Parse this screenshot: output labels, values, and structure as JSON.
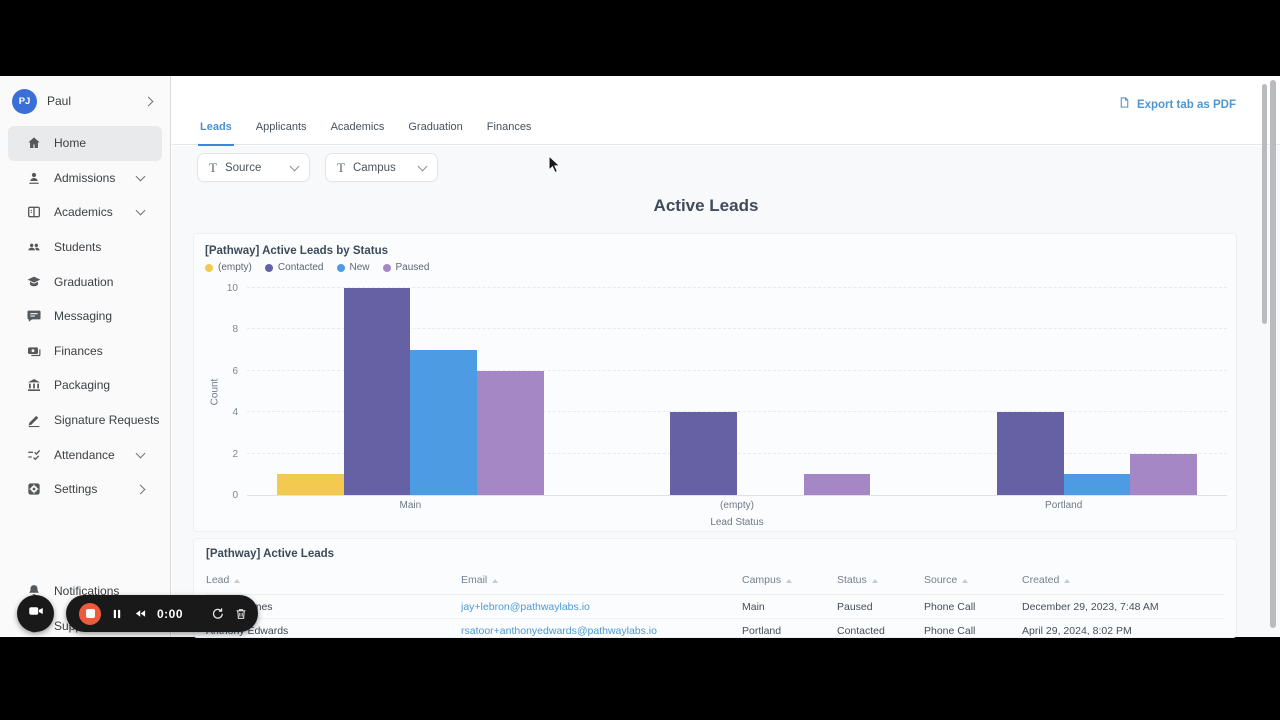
{
  "sidebar": {
    "user": {
      "initials": "PJ",
      "name": "Paul",
      "chevron": "right"
    },
    "items": [
      {
        "label": "Home",
        "icon": "home-icon",
        "active": true,
        "chevron": null
      },
      {
        "label": "Admissions",
        "icon": "person-icon",
        "active": false,
        "chevron": "down"
      },
      {
        "label": "Academics",
        "icon": "book-icon",
        "active": false,
        "chevron": "down"
      },
      {
        "label": "Students",
        "icon": "people-icon",
        "active": false,
        "chevron": null
      },
      {
        "label": "Graduation",
        "icon": "grad-cap-icon",
        "active": false,
        "chevron": null
      },
      {
        "label": "Messaging",
        "icon": "chat-icon",
        "active": false,
        "chevron": null
      },
      {
        "label": "Finances",
        "icon": "banknote-icon",
        "active": false,
        "chevron": null
      },
      {
        "label": "Packaging",
        "icon": "bank-icon",
        "active": false,
        "chevron": null
      },
      {
        "label": "Signature Requests",
        "icon": "pencil-icon",
        "active": false,
        "chevron": null
      },
      {
        "label": "Attendance",
        "icon": "checklist-icon",
        "active": false,
        "chevron": "down"
      },
      {
        "label": "Settings",
        "icon": "gear-icon",
        "active": false,
        "chevron": "right"
      }
    ],
    "footer_items": [
      {
        "label": "Notifications",
        "icon": "bell-icon"
      },
      {
        "label": "Support",
        "icon": "help-icon"
      }
    ]
  },
  "header": {
    "export_label": "Export tab as PDF",
    "export_icon": "file-icon",
    "accent_color": "#4f97ce"
  },
  "tabs": [
    {
      "label": "Leads",
      "active": true
    },
    {
      "label": "Applicants",
      "active": false
    },
    {
      "label": "Academics",
      "active": false
    },
    {
      "label": "Graduation",
      "active": false
    },
    {
      "label": "Finances",
      "active": false
    }
  ],
  "filters": [
    {
      "label": "Source",
      "icon": "text-filter-icon"
    },
    {
      "label": "Campus",
      "icon": "text-filter-icon"
    }
  ],
  "page": {
    "title": "Active Leads"
  },
  "chart_data": {
    "type": "bar",
    "title": "[Pathway] Active Leads by Status",
    "xlabel": "Lead Status",
    "ylabel": "Count",
    "ylim": [
      0,
      10
    ],
    "yticks": [
      0,
      2,
      4,
      6,
      8,
      10
    ],
    "grid": "dashed-horizontal",
    "legend_position": "top-left",
    "categories": [
      "Main",
      "(empty)",
      "Portland"
    ],
    "series": [
      {
        "name": "(empty)",
        "color": "#f4c94f",
        "values": [
          1,
          0,
          0
        ]
      },
      {
        "name": "Contacted",
        "color": "#6661a5",
        "values": [
          10,
          4,
          4
        ]
      },
      {
        "name": "New",
        "color": "#4d9be2",
        "values": [
          7,
          0,
          1
        ]
      },
      {
        "name": "Paused",
        "color": "#a687c6",
        "values": [
          6,
          1,
          2
        ]
      }
    ]
  },
  "table": {
    "title": "[Pathway] Active Leads",
    "columns": [
      "Lead",
      "Email",
      "Campus",
      "Status",
      "Source",
      "Created"
    ],
    "rows": [
      {
        "lead": "Lebron James",
        "email": "jay+lebron@pathwaylabs.io",
        "campus": "Main",
        "status": "Paused",
        "source": "Phone Call",
        "created": "December 29, 2023, 7:48 AM"
      },
      {
        "lead": "Anthony Edwards",
        "email": "rsatoor+anthonyedwards@pathwaylabs.io",
        "campus": "Portland",
        "status": "Contacted",
        "source": "Phone Call",
        "created": "April 29, 2024, 8:02 PM"
      }
    ]
  },
  "recorder": {
    "time": "0:00",
    "stop_color": "#ef5a3a",
    "buttons": [
      "camera-icon",
      "stop-icon",
      "pause-icon",
      "rewind-icon",
      "drag-dots-icon",
      "restart-icon",
      "trash-icon"
    ]
  }
}
